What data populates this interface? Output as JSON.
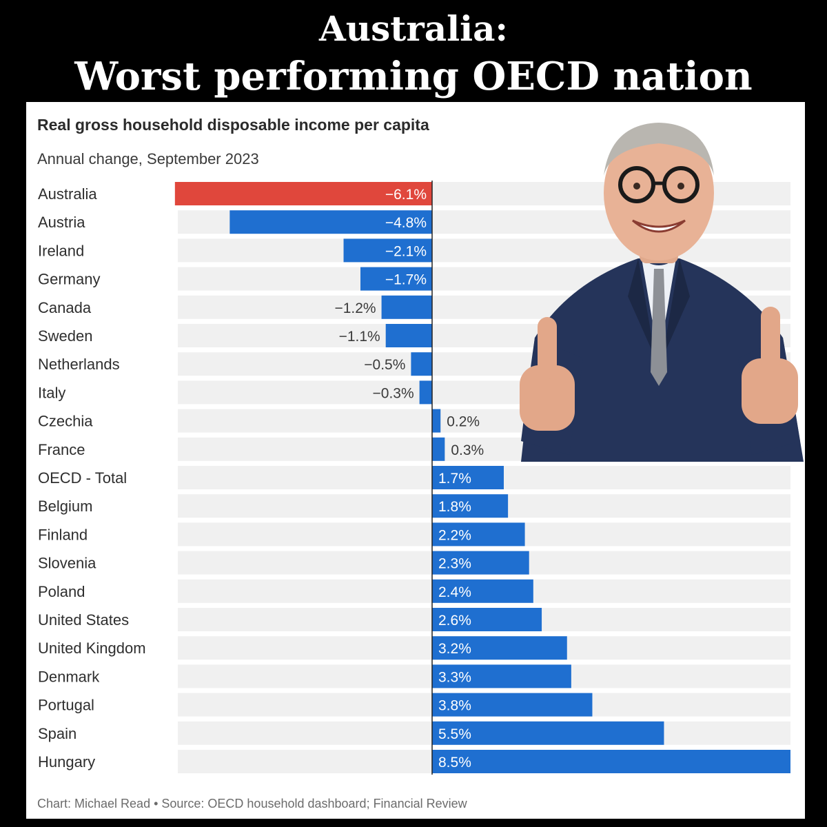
{
  "headline": {
    "line1": "Australia:",
    "line2": "Worst performing OECD nation"
  },
  "colors": {
    "negative_highlight": "#e0473c",
    "bar": "#1f6fd0",
    "track": "#f0f0f0"
  },
  "chart_data": {
    "type": "bar",
    "orientation": "horizontal",
    "title": "Real gross household disposable income per capita",
    "subtitle": "Annual change, September 2023",
    "unit": "%",
    "xlim": [
      -6.1,
      8.5
    ],
    "categories": [
      "Australia",
      "Austria",
      "Ireland",
      "Germany",
      "Canada",
      "Sweden",
      "Netherlands",
      "Italy",
      "Czechia",
      "France",
      "OECD - Total",
      "Belgium",
      "Finland",
      "Slovenia",
      "Poland",
      "United States",
      "United Kingdom",
      "Denmark",
      "Portugal",
      "Spain",
      "Hungary"
    ],
    "values": [
      -6.1,
      -4.8,
      -2.1,
      -1.7,
      -1.2,
      -1.1,
      -0.5,
      -0.3,
      0.2,
      0.3,
      1.7,
      1.8,
      2.2,
      2.3,
      2.4,
      2.6,
      3.2,
      3.3,
      3.8,
      5.5,
      8.5
    ],
    "labels": [
      "−6.1%",
      "−4.8%",
      "−2.1%",
      "−1.7%",
      "−1.2%",
      "−1.1%",
      "−0.5%",
      "−0.3%",
      "0.2%",
      "0.3%",
      "1.7%",
      "1.8%",
      "2.2%",
      "2.3%",
      "2.4%",
      "2.6%",
      "3.2%",
      "3.3%",
      "3.8%",
      "5.5%",
      "8.5%"
    ],
    "highlight_category": "Australia",
    "source": "Chart: Michael Read • Source: OECD household dashboard; Financial Review"
  },
  "photo": {
    "subject": "smiling-man-thumbs-up"
  }
}
